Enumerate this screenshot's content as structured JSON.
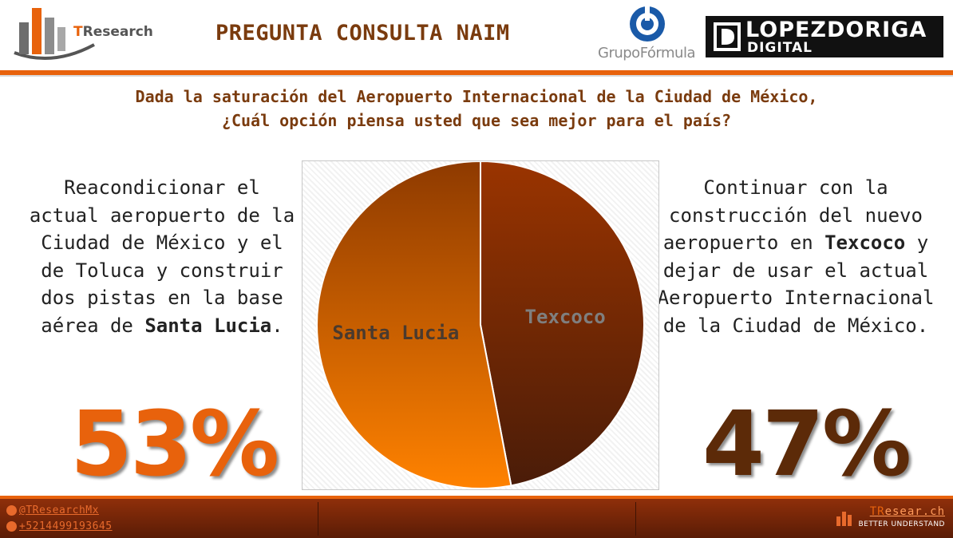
{
  "header": {
    "tr_logo_prefix": "T",
    "tr_logo_rest": "Research",
    "title": "PREGUNTA CONSULTA NAIM",
    "grupo_formula": "GrupoFórmula",
    "lopezdoriga_top": "LOPEZDORIGA",
    "lopezdoriga_bottom": "DIGITAL"
  },
  "question": {
    "line1": "Dada la saturación del Aeropuerto Internacional de la Ciudad de México,",
    "line2": "¿Cuál opción piensa usted que sea mejor para el país?"
  },
  "left_option": {
    "text": "Reacondicionar el actual aeropuerto de la Ciudad de México y el de Toluca y construir dos pistas en la base aérea de ",
    "bold": "Santa Lucia",
    "suffix": ".",
    "percent": "53%"
  },
  "right_option": {
    "text_before": "Continuar con la construcción del nuevo aeropuerto en ",
    "bold": "Texcoco",
    "text_after": " y dejar de usar el actual Aeropuerto Internacional de la Ciudad de México.",
    "percent": "47%"
  },
  "chart_data": {
    "type": "pie",
    "title": "",
    "slices": [
      {
        "label": "Texcoco",
        "value": 47
      },
      {
        "label": "Santa Lucia",
        "value": 53
      }
    ],
    "colors": [
      "#8f2f00",
      "#ff7f00"
    ]
  },
  "footer": {
    "twitter": "@TResearchMx",
    "whatsapp": "+5214499193645",
    "brand_prefix": "TR",
    "brand_rest": "esear.ch",
    "tagline": "BETTER UNDERSTAND"
  },
  "colors": {
    "accent": "#e8620c",
    "title": "#7a3b0e",
    "dark_brown": "#5c2a08"
  }
}
